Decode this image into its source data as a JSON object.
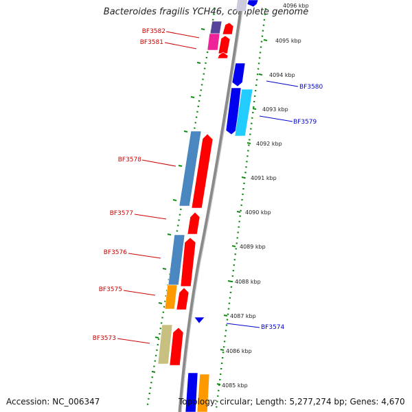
{
  "title": "Bacteroides fragilis YCH46, complete genome",
  "footer": {
    "accession": "Accession: NC_006347",
    "summary": "Topology: circular; Length: 5,277,274 bp; Genes: 4,670"
  },
  "kbp_labels": [
    "4096 kbp",
    "4095 kbp",
    "4094 kbp",
    "4093 kbp",
    "4092 kbp",
    "4091 kbp",
    "4090 kbp",
    "4089 kbp",
    "4088 kbp",
    "4087 kbp",
    "4086 kbp",
    "4085 kbp"
  ],
  "gene_labels_left": [
    "BF3582",
    "BF3581",
    "BF3578",
    "BF3577",
    "BF3576",
    "BF3575",
    "BF3573"
  ],
  "gene_labels_right": [
    "BF3580",
    "BF3579",
    "BF3574"
  ],
  "colors": {
    "label_left": "#cc0000",
    "label_right": "#0000cc",
    "tick": "#118811",
    "backbone": "#8a8a8a",
    "red": "#ff0000",
    "blue": "#0000ee",
    "cyan": "#22ccff",
    "steel": "#4a86c0",
    "orange": "#ff9900",
    "olive": "#c8c080",
    "magenta": "#ee2299",
    "purple": "#554499"
  }
}
